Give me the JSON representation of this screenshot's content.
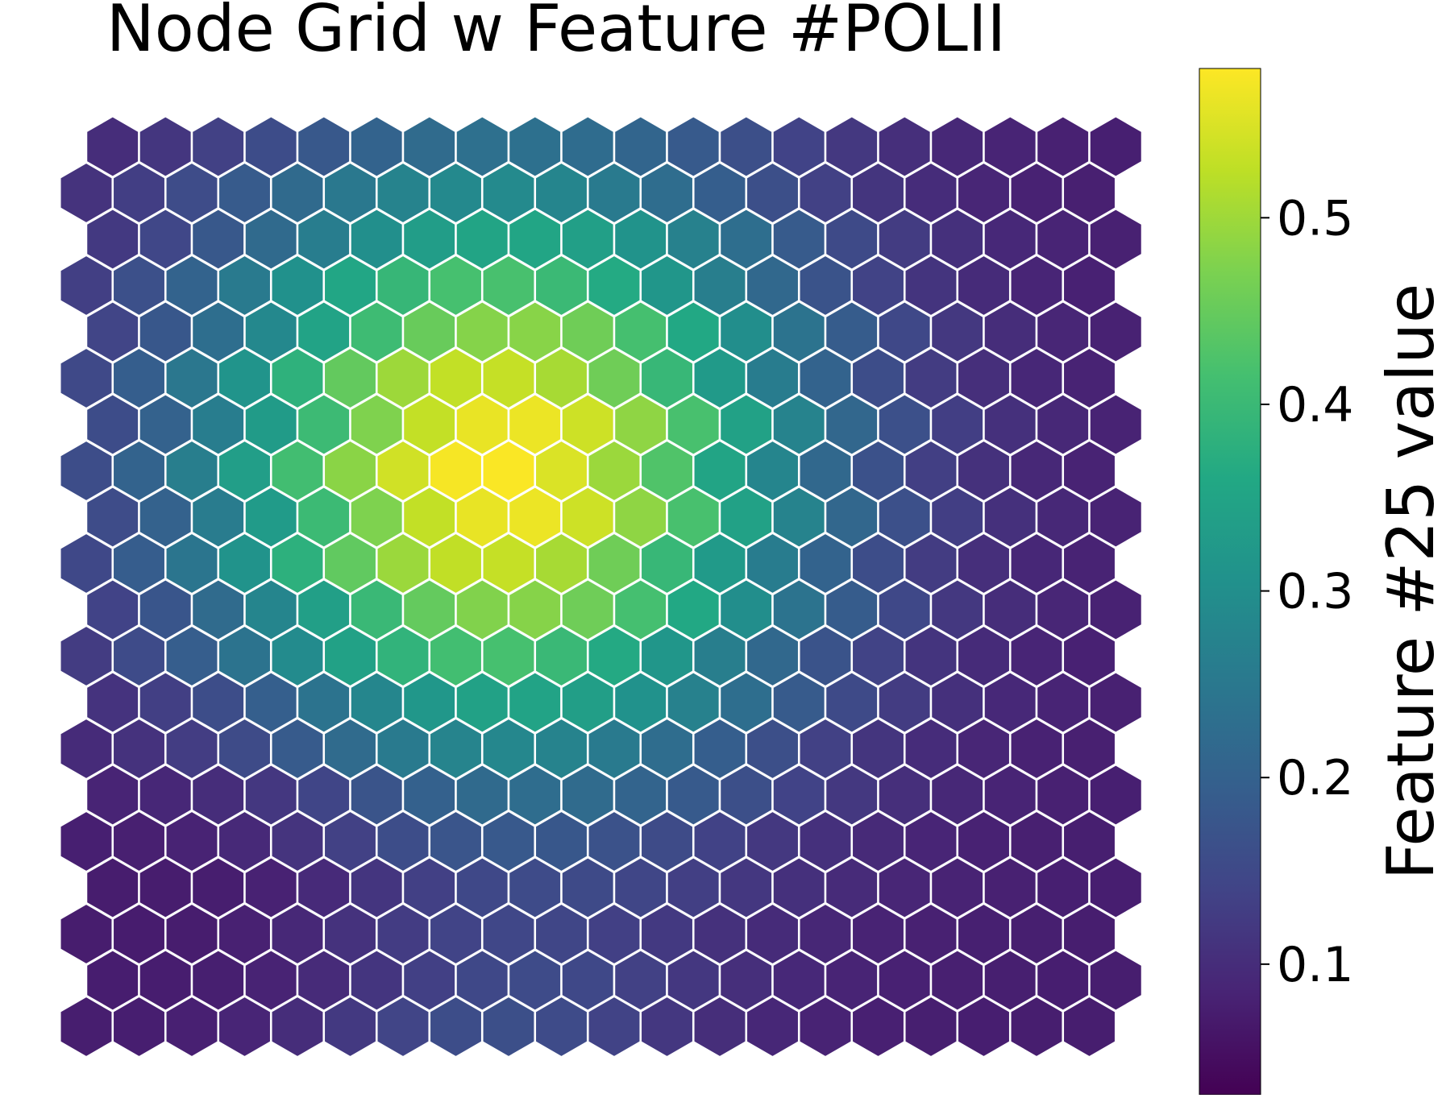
{
  "chart_data": {
    "type": "heatmap",
    "layout": "hexagonal",
    "title": "Node Grid w Feature #POLII",
    "colorbar_label": "Feature #25 value",
    "colormap": "viridis",
    "vmin": 0.03,
    "vmax": 0.58,
    "colorbar_ticks": [
      0.1,
      0.2,
      0.3,
      0.4,
      0.5
    ],
    "colorbar_tick_labels": [
      "0.1",
      "0.2",
      "0.3",
      "0.4",
      "0.5"
    ],
    "grid": false,
    "cell_edge_color": "#ffffff",
    "rows": 20,
    "cols": 20,
    "hot_spot": {
      "row": 7,
      "col": 7.6,
      "peak": 0.58
    },
    "secondary_spot": {
      "row": 19.5,
      "col": 7.8,
      "peak": 0.15
    },
    "cold_spot": {
      "row": 14.5,
      "col": 3.4,
      "low": 0.032
    }
  }
}
